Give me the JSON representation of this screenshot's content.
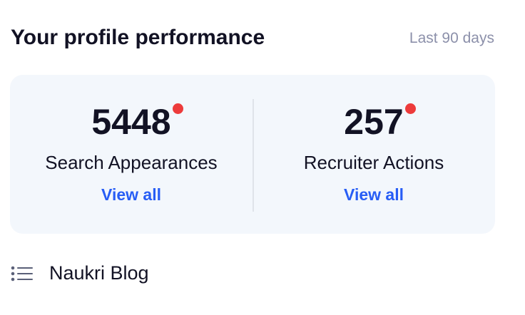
{
  "header": {
    "title": "Your profile performance",
    "period": "Last 90 days"
  },
  "stats": [
    {
      "value": "5448",
      "label": "Search Appearances",
      "link": "View all"
    },
    {
      "value": "257",
      "label": "Recruiter Actions",
      "link": "View all"
    }
  ],
  "footer": {
    "label": "Naukri Blog"
  }
}
